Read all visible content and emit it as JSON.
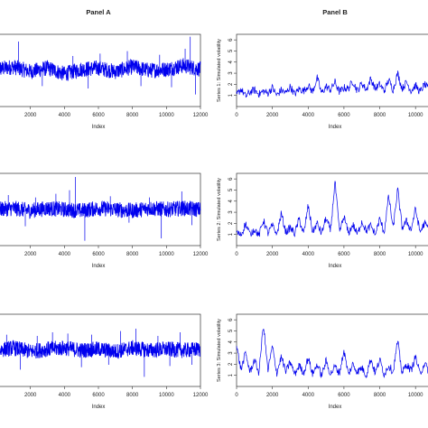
{
  "chart_data": [
    {
      "type": "line",
      "panel_title": "Panel A",
      "xlabel": "Index",
      "ylabel": "",
      "xlim": [
        0,
        12000
      ],
      "ylim": [
        -3,
        3
      ],
      "xticks": [
        "2000",
        "4000",
        "6000",
        "8000",
        "10000",
        "12000"
      ],
      "yticks": [],
      "series": [
        {
          "color": "#0000ee",
          "x": [
            0,
            1000,
            2000,
            3000,
            4000,
            5000,
            6000,
            7000,
            8000,
            9000,
            10000,
            11000,
            12000
          ],
          "y": [
            0.1,
            0.3,
            -0.1,
            0.2,
            -0.3,
            0.1,
            0.2,
            -0.1,
            0.3,
            0.0,
            0.1,
            0.4,
            0.1
          ],
          "spikes": [
            [
              1300,
              2.4
            ],
            [
              2700,
              -1.3
            ],
            [
              4500,
              1.2
            ],
            [
              5400,
              -1.5
            ],
            [
              6100,
              1.4
            ],
            [
              7700,
              1.6
            ],
            [
              8500,
              -1.3
            ],
            [
              9600,
              1.3
            ],
            [
              10300,
              -1.4
            ],
            [
              11100,
              1.8
            ],
            [
              11400,
              2.8
            ],
            [
              11700,
              -2.0
            ]
          ]
        }
      ]
    },
    {
      "type": "line",
      "panel_title": "Panel B",
      "xlabel": "Index",
      "ylabel": "Series 1: Simulated volatility",
      "xlim": [
        0,
        11000
      ],
      "ylim": [
        0,
        6.5
      ],
      "xticks": [
        "0",
        "2000",
        "4000",
        "6000",
        "8000",
        "10000"
      ],
      "yticks": [
        "1",
        "2",
        "3",
        "4",
        "5",
        "6"
      ],
      "series": [
        {
          "color": "#0000ee",
          "x": [
            0,
            250,
            500,
            750,
            1000,
            1250,
            1500,
            1750,
            2000,
            2250,
            2500,
            2750,
            3000,
            3250,
            3500,
            3750,
            4000,
            4250,
            4500,
            4750,
            5000,
            5250,
            5500,
            5750,
            6000,
            6250,
            6500,
            6750,
            7000,
            7250,
            7500,
            7750,
            8000,
            8250,
            8500,
            8750,
            9000,
            9250,
            9500,
            9750,
            10000,
            10250,
            10500,
            10750,
            11000
          ],
          "y": [
            1.0,
            1.6,
            0.9,
            1.3,
            1.5,
            1.1,
            1.4,
            1.2,
            1.7,
            1.0,
            1.5,
            1.2,
            1.8,
            1.1,
            1.6,
            1.4,
            1.9,
            1.3,
            2.6,
            1.2,
            1.8,
            1.5,
            2.2,
            1.3,
            1.7,
            1.6,
            2.3,
            1.4,
            2.1,
            1.5,
            2.5,
            1.6,
            2.0,
            1.4,
            2.4,
            1.5,
            3.0,
            1.6,
            2.2,
            1.4,
            1.9,
            1.3,
            2.0,
            1.5,
            1.7
          ]
        }
      ]
    },
    {
      "type": "line",
      "panel_title": "",
      "xlabel": "Index",
      "ylabel": "",
      "xlim": [
        0,
        12000
      ],
      "ylim": [
        -3,
        3
      ],
      "xticks": [
        "2000",
        "4000",
        "6000",
        "8000",
        "10000",
        "12000"
      ],
      "yticks": [],
      "series": [
        {
          "color": "#0000ee",
          "x": [
            0,
            1000,
            2000,
            3000,
            4000,
            5000,
            6000,
            7000,
            8000,
            9000,
            10000,
            11000,
            12000
          ],
          "y": [
            0.0,
            0.1,
            -0.1,
            0.1,
            0.0,
            -0.1,
            0.1,
            0.0,
            -0.1,
            0.1,
            0.0,
            0.1,
            0.0
          ],
          "spikes": [
            [
              700,
              1.2
            ],
            [
              1700,
              -1.4
            ],
            [
              2300,
              1.0
            ],
            [
              3500,
              1.3
            ],
            [
              4300,
              1.6
            ],
            [
              4650,
              2.7
            ],
            [
              5200,
              -2.6
            ],
            [
              6700,
              1.1
            ],
            [
              7800,
              -1.1
            ],
            [
              9000,
              1.0
            ],
            [
              9700,
              -2.4
            ],
            [
              10900,
              1.5
            ],
            [
              11500,
              -1.3
            ]
          ]
        }
      ]
    },
    {
      "type": "line",
      "panel_title": "",
      "xlabel": "Index",
      "ylabel": "Series 2: Simulated volatility",
      "xlim": [
        0,
        11000
      ],
      "ylim": [
        0,
        6.5
      ],
      "xticks": [
        "0",
        "2000",
        "4000",
        "6000",
        "8000",
        "10000"
      ],
      "yticks": [
        "1",
        "2",
        "3",
        "4",
        "5",
        "6"
      ],
      "series": [
        {
          "color": "#0000ee",
          "x": [
            0,
            250,
            500,
            750,
            1000,
            1250,
            1500,
            1750,
            2000,
            2250,
            2500,
            2750,
            3000,
            3250,
            3500,
            3750,
            4000,
            4250,
            4500,
            4750,
            5000,
            5250,
            5500,
            5750,
            6000,
            6250,
            6500,
            6750,
            7000,
            7250,
            7500,
            7750,
            8000,
            8250,
            8500,
            8750,
            9000,
            9250,
            9500,
            9750,
            10000,
            10250,
            10500,
            10750,
            11000
          ],
          "y": [
            1.2,
            0.9,
            2.0,
            1.0,
            1.5,
            0.9,
            2.3,
            1.1,
            1.8,
            1.0,
            2.9,
            1.2,
            1.6,
            1.1,
            2.4,
            1.0,
            3.6,
            1.2,
            2.0,
            1.1,
            2.5,
            1.3,
            5.8,
            1.2,
            2.6,
            1.1,
            1.9,
            1.0,
            2.2,
            1.3,
            1.8,
            1.0,
            2.4,
            1.2,
            4.5,
            1.5,
            5.1,
            1.6,
            2.2,
            1.4,
            3.3,
            1.2,
            2.0,
            1.5,
            1.8
          ]
        }
      ]
    },
    {
      "type": "line",
      "panel_title": "",
      "xlabel": "Index",
      "ylabel": "",
      "xlim": [
        0,
        12000
      ],
      "ylim": [
        -3,
        3
      ],
      "xticks": [
        "2000",
        "4000",
        "6000",
        "8000",
        "10000",
        "12000"
      ],
      "yticks": [],
      "series": [
        {
          "color": "#0000ee",
          "x": [
            0,
            1000,
            2000,
            3000,
            4000,
            5000,
            6000,
            7000,
            8000,
            9000,
            10000,
            11000,
            12000
          ],
          "y": [
            0.0,
            0.2,
            -0.1,
            0.1,
            0.2,
            0.0,
            0.1,
            -0.1,
            0.2,
            0.0,
            0.1,
            0.0,
            0.1
          ],
          "spikes": [
            [
              600,
              1.3
            ],
            [
              1400,
              -1.6
            ],
            [
              2400,
              1.2
            ],
            [
              3300,
              1.5
            ],
            [
              4200,
              1.4
            ],
            [
              5000,
              -1.4
            ],
            [
              5600,
              1.3
            ],
            [
              6600,
              -1.2
            ],
            [
              7300,
              1.6
            ],
            [
              8200,
              1.8
            ],
            [
              8700,
              -2.2
            ],
            [
              9500,
              1.2
            ],
            [
              10200,
              -1.3
            ],
            [
              10800,
              1.5
            ],
            [
              11500,
              -1.2
            ]
          ]
        }
      ]
    },
    {
      "type": "line",
      "panel_title": "",
      "xlabel": "Index",
      "ylabel": "Series 3: Simulated volatility",
      "xlim": [
        0,
        11000
      ],
      "ylim": [
        0,
        6.5
      ],
      "xticks": [
        "0",
        "2000",
        "4000",
        "6000",
        "8000",
        "10000"
      ],
      "yticks": [
        "1",
        "2",
        "3",
        "4",
        "5",
        "6"
      ],
      "series": [
        {
          "color": "#0000ee",
          "x": [
            0,
            250,
            500,
            750,
            1000,
            1250,
            1500,
            1750,
            2000,
            2250,
            2500,
            2750,
            3000,
            3250,
            3500,
            3750,
            4000,
            4250,
            4500,
            4750,
            5000,
            5250,
            5500,
            5750,
            6000,
            6250,
            6500,
            6750,
            7000,
            7250,
            7500,
            7750,
            8000,
            8250,
            8500,
            8750,
            9000,
            9250,
            9500,
            9750,
            10000,
            10250,
            10500,
            10750,
            11000
          ],
          "y": [
            3.6,
            1.5,
            3.0,
            1.3,
            2.4,
            1.2,
            5.6,
            1.4,
            3.6,
            1.2,
            2.7,
            1.3,
            2.2,
            1.1,
            1.9,
            1.2,
            2.6,
            1.1,
            2.0,
            1.0,
            2.3,
            1.1,
            1.8,
            1.2,
            3.2,
            1.1,
            2.0,
            1.3,
            1.7,
            1.0,
            2.5,
            1.2,
            2.4,
            1.1,
            1.9,
            1.3,
            4.1,
            1.2,
            2.0,
            1.4,
            2.7,
            1.1,
            2.1,
            1.3,
            2.0
          ]
        }
      ]
    }
  ]
}
